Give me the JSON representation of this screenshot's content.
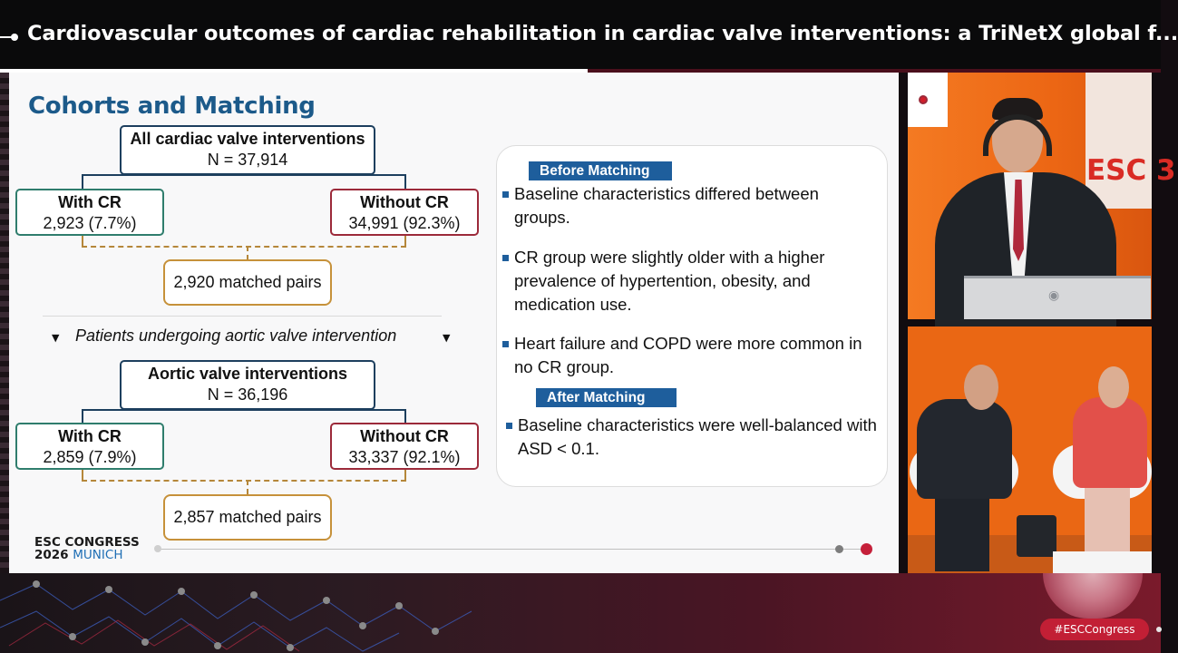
{
  "header": {
    "title": "Cardiovascular outcomes of cardiac rehabilitation in cardiac valve interventions: a TriNetX global f..."
  },
  "slide": {
    "title": "Cohorts and Matching",
    "group1": {
      "parent": {
        "label": "All cardiac valve interventions",
        "value": "N = 37,914"
      },
      "left": {
        "label": "With CR",
        "value": "2,923 (7.7%)"
      },
      "right": {
        "label": "Without CR",
        "value": "34,991 (92.3%)"
      },
      "matched": "2,920 matched pairs"
    },
    "subtitle": "Patients undergoing aortic valve intervention",
    "group2": {
      "parent": {
        "label": "Aortic valve interventions",
        "value": "N = 36,196"
      },
      "left": {
        "label": "With CR",
        "value": "2,859 (7.9%)"
      },
      "right": {
        "label": "Without CR",
        "value": "33,337 (92.1%)"
      },
      "matched": "2,857 matched pairs"
    },
    "panel": {
      "before_label": "Before Matching",
      "before_bullets": [
        "Baseline characteristics differed between groups.",
        "CR group were slightly older with a higher prevalence of hypertention, obesity, and medication use.",
        "Heart failure and COPD were more common in no CR group."
      ],
      "after_label": "After Matching",
      "after_bullets": [
        "Baseline characteristics were well-balanced with ASD < 0.1."
      ]
    },
    "footer": {
      "brand_line1": "ESC CONGRESS",
      "brand_year": "2026",
      "brand_city": "MUNICH"
    }
  },
  "video_speaker": {
    "backdrop_text": "ESC 3"
  },
  "hashtag": "#ESCCongress",
  "colors": {
    "title_blue": "#1c5a8a",
    "tag_blue": "#1e5e9c",
    "navy_border": "#1d3f5e",
    "green_border": "#2f7d6d",
    "red_border": "#9c2a3a",
    "gold_border": "#c6913a",
    "esc_red": "#c21f35"
  }
}
